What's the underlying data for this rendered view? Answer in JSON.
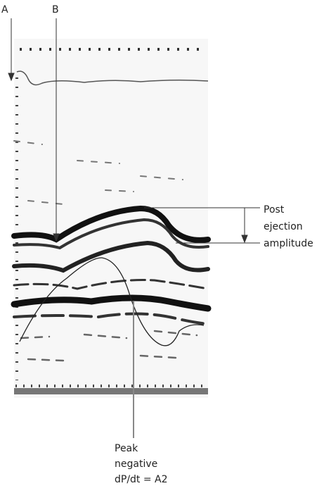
{
  "markers": {
    "a": "A",
    "b": "B"
  },
  "annotations": [
    {
      "lines": [
        "Post",
        "ejection",
        "amplitude"
      ]
    },
    {
      "lines": [
        "Peak",
        "negative",
        "dP/dt = A2"
      ]
    }
  ]
}
